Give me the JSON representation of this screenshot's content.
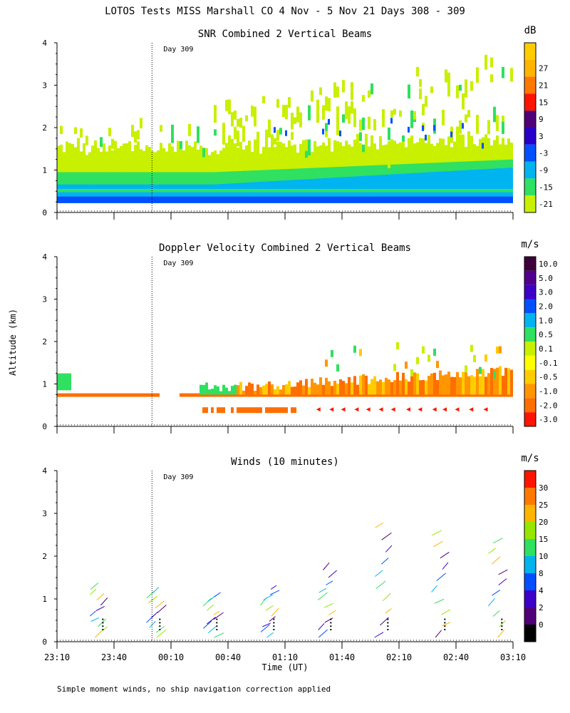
{
  "title": "LOTOS Tests MISS Marshall CO   4 Nov -  5 Nov 21 Days 308 - 309",
  "y_axis_label": "Altitude (km)",
  "x_axis_label": "Time (UT)",
  "footnote": "Simple moment winds, no ship navigation correction applied",
  "time_ticks": [
    "23:10",
    "23:40",
    "00:10",
    "00:40",
    "01:10",
    "01:40",
    "02:10",
    "02:40",
    "03:10"
  ],
  "altitude_ticks": [
    "0",
    "1",
    "2",
    "3",
    "4"
  ],
  "chart_data": [
    {
      "type": "heatmap",
      "title": "SNR Combined 2 Vertical Beams",
      "unit": "dB",
      "xlabel": "Time (UT)",
      "ylabel": "Altitude (km)",
      "x_range_hours": [
        23.1667,
        27.1667
      ],
      "ylim": [
        0,
        4
      ],
      "day_marker": {
        "label": "Day 309",
        "time_hours": 24.0
      },
      "colorbar_labels": [
        "-21",
        "-15",
        "-9",
        "-3",
        "3",
        "9",
        "15",
        "21",
        "27"
      ],
      "colorbar_values": [
        -21,
        -15,
        -9,
        -3,
        3,
        9,
        15,
        21,
        27
      ],
      "colors": [
        "#c8f000",
        "#30e060",
        "#00b4f0",
        "#0050ff",
        "#2800c8",
        "#500078",
        "#ff1400",
        "#ff7800",
        "#ffb400",
        "#ffcc00"
      ],
      "profile_summary": [
        {
          "altitude_km": 0.35,
          "value_db": 0
        },
        {
          "altitude_km": 0.5,
          "value_db": -9
        },
        {
          "altitude_km": 0.8,
          "value_db": -15
        },
        {
          "altitude_km": 1.2,
          "value_db": -21
        }
      ]
    },
    {
      "type": "heatmap",
      "title": "Doppler Velocity Combined 2 Vertical Beams",
      "unit": "m/s",
      "xlabel": "Time (UT)",
      "ylabel": "Altitude (km)",
      "x_range_hours": [
        23.1667,
        27.1667
      ],
      "ylim": [
        0,
        4
      ],
      "day_marker": {
        "label": "Day 309",
        "time_hours": 24.0
      },
      "colorbar_labels": [
        "10.0",
        "5.0",
        "3.0",
        "2.0",
        "1.0",
        "0.5",
        "0.1",
        "-0.1",
        "-0.5",
        "-1.0",
        "-2.0",
        "-3.0"
      ],
      "colorbar_values": [
        10.0,
        5.0,
        3.0,
        2.0,
        1.0,
        0.5,
        0.1,
        -0.1,
        -0.5,
        -1.0,
        -2.0,
        -3.0
      ],
      "colors": [
        "#3c003c",
        "#50008c",
        "#3c00c8",
        "#0050ff",
        "#00b4f0",
        "#30e060",
        "#c8f000",
        "#ffff00",
        "#ffcc00",
        "#ff9600",
        "#ff6e00",
        "#ff1400"
      ]
    },
    {
      "type": "wind_barbs",
      "title": "Winds (10 minutes)",
      "unit": "m/s",
      "xlabel": "Time (UT)",
      "ylabel": "Altitude (km)",
      "x_range_hours": [
        23.1667,
        27.1667
      ],
      "ylim": [
        0,
        4
      ],
      "day_marker": {
        "label": "Day 309",
        "time_hours": 24.0
      },
      "colorbar_labels": [
        "30",
        "25",
        "20",
        "15",
        "10",
        "8",
        "4",
        "2",
        "0"
      ],
      "colorbar_values": [
        30,
        25,
        20,
        15,
        10,
        8,
        4,
        2,
        0
      ],
      "colors": [
        "#ff1400",
        "#ff7800",
        "#ffb400",
        "#96e600",
        "#30e060",
        "#00b4f0",
        "#0050ff",
        "#3c00c8",
        "#500078",
        "#000000"
      ],
      "profile_times_hours": [
        23.75,
        24.25,
        24.75,
        25.25,
        25.75,
        26.25,
        26.75,
        27.25
      ],
      "profiles": [
        {
          "time": "23:45",
          "top_km": 1.35
        },
        {
          "time": "00:15",
          "top_km": 1.25
        },
        {
          "time": "00:45",
          "top_km": 1.15
        },
        {
          "time": "01:15",
          "top_km": 1.35
        },
        {
          "time": "01:45",
          "top_km": 1.85
        },
        {
          "time": "02:15",
          "top_km": 2.95
        },
        {
          "time": "02:45",
          "top_km": 2.75
        },
        {
          "time": "03:15",
          "top_km": 2.55
        }
      ]
    }
  ]
}
